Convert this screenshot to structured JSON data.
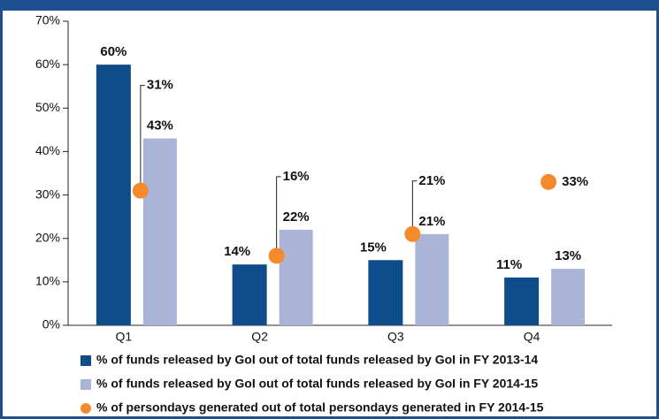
{
  "chart_data": {
    "type": "bar",
    "categories": [
      "Q1",
      "Q2",
      "Q3",
      "Q4"
    ],
    "series": [
      {
        "name": "% of funds released by GoI out of total funds released by GoI in FY 2013-14",
        "color": "#0f4c8c",
        "values": [
          60,
          14,
          15,
          11
        ],
        "value_labels": [
          "60%",
          "14%",
          "15%",
          "11%"
        ]
      },
      {
        "name": "% of funds released by GoI out of total funds released by GoI in FY 2014-15",
        "color": "#a9b4d6",
        "values": [
          43,
          22,
          21,
          13
        ],
        "value_labels": [
          "43%",
          "22%",
          "21%",
          "13%"
        ]
      },
      {
        "name": "% of persondays generated out of total persondays generated in FY 2014-15",
        "color": "#f58a2a",
        "marker": "dot",
        "values": [
          31,
          16,
          21,
          33
        ],
        "value_labels": [
          "31%",
          "16%",
          "21%",
          "33%"
        ]
      }
    ],
    "ylim": [
      0,
      70
    ],
    "yticks": [
      {
        "value": 0,
        "label": "0%"
      },
      {
        "value": 10,
        "label": "10%"
      },
      {
        "value": 20,
        "label": "20%"
      },
      {
        "value": 30,
        "label": "30%"
      },
      {
        "value": 40,
        "label": "40%"
      },
      {
        "value": 50,
        "label": "50%"
      },
      {
        "value": 60,
        "label": "60%"
      },
      {
        "value": 70,
        "label": "70%"
      }
    ]
  }
}
